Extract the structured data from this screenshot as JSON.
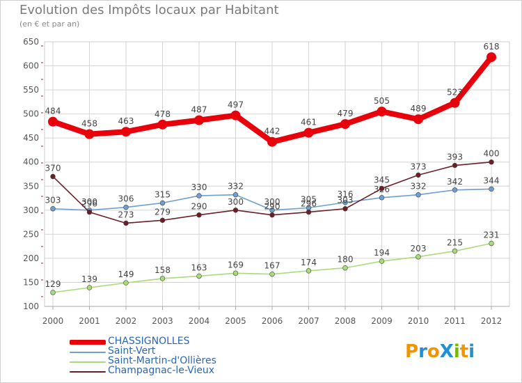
{
  "title": "Evolution des Impôts locaux par Habitant",
  "subtitle": "(en € et par an)",
  "logo": {
    "text": "ProXiti",
    "colors": [
      "#f29400",
      "#1f8fd6",
      "#f29400",
      "#1f8fd6",
      "#7ab800",
      "#f29400",
      "#1f8fd6"
    ]
  },
  "chart_data": {
    "type": "line",
    "x": [
      "2000",
      "2001",
      "2002",
      "2003",
      "2004",
      "2005",
      "2006",
      "2007",
      "2008",
      "2009",
      "2010",
      "2011",
      "2012"
    ],
    "ylim": [
      100,
      650
    ],
    "yticks": [
      100,
      150,
      200,
      250,
      300,
      350,
      400,
      450,
      500,
      550,
      600,
      650
    ],
    "grid": true,
    "legend_position": "bottom-left",
    "series": [
      {
        "name": "CHASSIGNOLLES",
        "color": "#e8000b",
        "values": [
          484,
          458,
          463,
          478,
          487,
          497,
          442,
          461,
          479,
          505,
          489,
          523,
          618
        ]
      },
      {
        "name": "Saint-Vert",
        "color": "#6f9fd0",
        "values": [
          303,
          300,
          306,
          315,
          330,
          332,
          300,
          305,
          316,
          326,
          332,
          342,
          344
        ]
      },
      {
        "name": "Saint-Martin-d'Ollières",
        "color": "#a8dc78",
        "values": [
          129,
          139,
          149,
          158,
          163,
          169,
          167,
          174,
          180,
          194,
          203,
          215,
          231
        ]
      },
      {
        "name": "Champagnac-le-Vieux",
        "color": "#6b1f24",
        "values": [
          370,
          296,
          273,
          279,
          290,
          300,
          290,
          296,
          303,
          345,
          373,
          393,
          400
        ]
      }
    ]
  }
}
